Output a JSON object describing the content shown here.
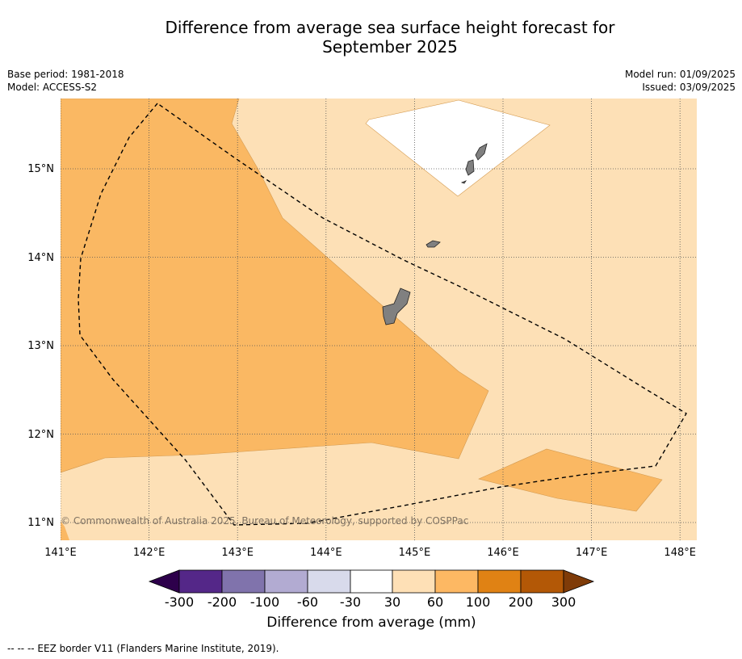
{
  "title_line1": "Difference from average sea surface height forecast for",
  "title_line2": "September 2025",
  "base_period": "Base period: 1981-2018",
  "model": "Model: ACCESS-S2",
  "model_run": "Model run: 01/09/2025",
  "issued": "Issued: 03/09/2025",
  "copyright": "© Commonwealth of Australia 2025, Bureau of Meteorology, supported by COSPPac",
  "lon_ticks": [
    "141°E",
    "142°E",
    "143°E",
    "144°E",
    "145°E",
    "146°E",
    "147°E",
    "148°E"
  ],
  "lat_ticks": [
    "15°N",
    "14°N",
    "13°N",
    "12°N",
    "11°N"
  ],
  "colorbar": {
    "ticks": [
      "-300",
      "-200",
      "-100",
      "-60",
      "-30",
      "30",
      "60",
      "100",
      "200",
      "300"
    ],
    "colors": [
      "#2d004b",
      "#542788",
      "#8073ac",
      "#b2abd2",
      "#d8daeb",
      "#ffffff",
      "#fee0b6",
      "#fdb863",
      "#e08214",
      "#b35806",
      "#7f3b08"
    ],
    "label": "Difference from average (mm)"
  },
  "colors": {
    "bin_30_60": "#fde0b6",
    "bin_60_100": "#fab863",
    "bin_neutral": "#ffffff",
    "land": "#808080",
    "gridline": "#555555"
  },
  "footnote": "--  --  -- EEZ border V11 (Flanders Marine Institute, 2019)."
}
